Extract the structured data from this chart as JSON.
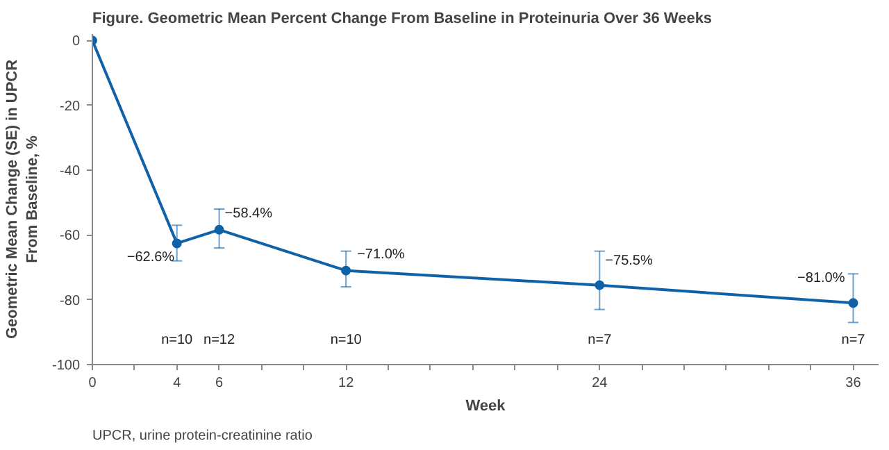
{
  "chart_data": {
    "type": "line",
    "title": "Figure. Geometric Mean Percent Change From Baseline in Proteinuria Over 36 Weeks",
    "xlabel": "Week",
    "ylabel": "Geometric Mean Change (SE) in UPCR From Baseline, %",
    "x": [
      0,
      4,
      6,
      12,
      24,
      36
    ],
    "series": [
      {
        "color": "#0f62a8",
        "values": [
          0,
          -62.6,
          -58.4,
          -71.0,
          -75.5,
          -81.0
        ],
        "errors": [
          null,
          [
            -68,
            -57
          ],
          [
            -64,
            -52
          ],
          [
            -76,
            -65
          ],
          [
            -83,
            -65
          ],
          [
            -87,
            -72
          ]
        ],
        "value_labels": [
          null,
          "−62.6%",
          "−58.4%",
          "−71.0%",
          "−75.5%",
          "−81.0%"
        ]
      }
    ],
    "xlim": [
      0,
      37.2
    ],
    "ylim": [
      -100,
      2
    ],
    "xticks": [
      0,
      {
        "value": 2,
        "label": null
      },
      4,
      6,
      {
        "value": 8,
        "label": null
      },
      {
        "value": 10,
        "label": null
      },
      12,
      {
        "value": 14,
        "label": null
      },
      {
        "value": 16,
        "label": null
      },
      {
        "value": 18,
        "label": null
      },
      {
        "value": 20,
        "label": null
      },
      {
        "value": 22,
        "label": null
      },
      24,
      {
        "value": 26,
        "label": null
      },
      {
        "value": 28,
        "label": null
      },
      {
        "value": 30,
        "label": null
      },
      {
        "value": 32,
        "label": null
      },
      {
        "value": 34,
        "label": null
      },
      36
    ],
    "yticks": [
      0,
      -20,
      -40,
      -60,
      -80,
      -100
    ],
    "marker": "circle",
    "line_style": "solid",
    "grid": false,
    "annotations": [
      "n=10",
      "n=12",
      "n=10",
      "n=7",
      "n=7",
      "UPCR, urine protein-creatinine ratio"
    ]
  }
}
